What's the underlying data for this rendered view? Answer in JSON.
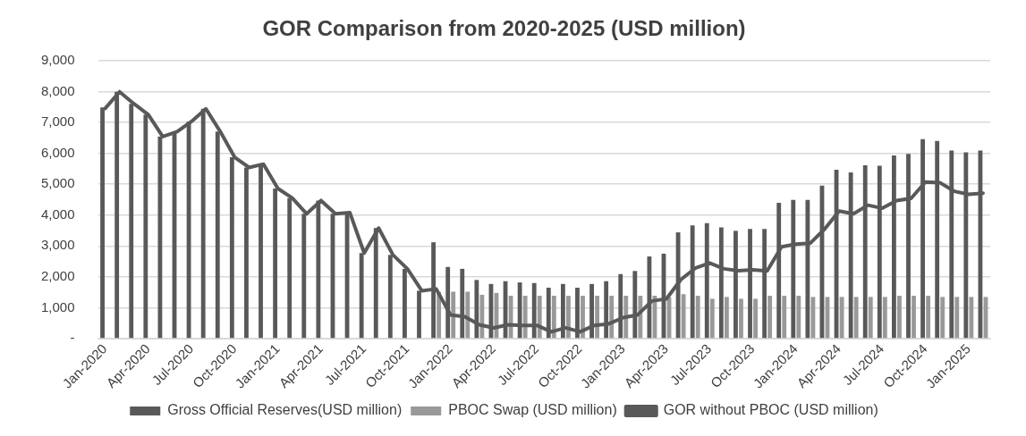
{
  "chart_data": {
    "type": "bar",
    "title": "GOR Comparison from 2020-2025 (USD million)",
    "categories": [
      "Jan-2020",
      null,
      null,
      "Apr-2020",
      null,
      null,
      "Jul-2020",
      null,
      null,
      "Oct-2020",
      null,
      null,
      "Jan-2021",
      null,
      null,
      "Apr-2021",
      null,
      null,
      "Jul-2021",
      null,
      null,
      "Oct-2021",
      null,
      null,
      "Jan-2022",
      null,
      null,
      "Apr-2022",
      null,
      null,
      "Jul-2022",
      null,
      null,
      "Oct-2022",
      null,
      null,
      "Jan-2023",
      null,
      null,
      "Apr-2023",
      null,
      null,
      "Jul-2023",
      null,
      null,
      "Oct-2023",
      null,
      null,
      "Jan-2024",
      null,
      null,
      "Apr-2024",
      null,
      null,
      "Jul-2024",
      null,
      null,
      "Oct-2024",
      null,
      null,
      "Jan-2025",
      null
    ],
    "series": [
      {
        "name": "Gross Official Reserves(USD million)",
        "color": "#595959",
        "values": [
          7480,
          7990,
          7600,
          7250,
          6540,
          6700,
          7030,
          7440,
          6700,
          5870,
          5540,
          5650,
          4860,
          4550,
          4040,
          4470,
          4040,
          4080,
          2770,
          3580,
          2710,
          2260,
          1550,
          3120,
          2320,
          2260,
          1900,
          1770,
          1860,
          1820,
          1800,
          1650,
          1770,
          1650,
          1770,
          1860,
          2090,
          2190,
          2660,
          2750,
          3440,
          3670,
          3740,
          3600,
          3490,
          3550,
          3550,
          4400,
          4490,
          4490,
          4950,
          5470,
          5380,
          5610,
          5600,
          5930,
          5980,
          6460,
          6400,
          6090,
          6030,
          6090
        ]
      },
      {
        "name": "PBOC Swap (USD million)",
        "color": "#999999",
        "values": [
          null,
          null,
          null,
          null,
          null,
          null,
          null,
          null,
          null,
          null,
          null,
          null,
          null,
          null,
          null,
          null,
          null,
          null,
          null,
          null,
          null,
          null,
          null,
          1510,
          1520,
          1520,
          1420,
          1480,
          1390,
          1390,
          1390,
          1390,
          1390,
          1390,
          1390,
          1390,
          1390,
          1390,
          1390,
          1340,
          1440,
          1390,
          1290,
          1350,
          1290,
          1290,
          1390,
          1390,
          1390,
          1350,
          1350,
          1350,
          1350,
          1350,
          1350,
          1390,
          1390,
          1390,
          1350,
          1350,
          1350,
          1350
        ]
      },
      {
        "name": "GOR without PBOC (USD million)",
        "type": "line",
        "color": "#595959",
        "values": [
          7450,
          7990,
          7600,
          7250,
          6540,
          6700,
          7030,
          7440,
          6700,
          5870,
          5540,
          5650,
          4860,
          4550,
          4040,
          4470,
          4040,
          4080,
          2770,
          3580,
          2710,
          2260,
          1550,
          1610,
          770,
          710,
          450,
          350,
          450,
          430,
          430,
          220,
          350,
          220,
          430,
          480,
          680,
          770,
          1220,
          1290,
          1910,
          2280,
          2450,
          2260,
          2200,
          2230,
          2190,
          2970,
          3060,
          3090,
          3550,
          4130,
          4040,
          4320,
          4220,
          4470,
          4540,
          5070,
          5050,
          4770,
          4670,
          4710
        ]
      }
    ],
    "ylim": [
      0,
      9000
    ],
    "yticks": [
      {
        "value": 0,
        "label": "-"
      },
      {
        "value": 1000,
        "label": "1,000"
      },
      {
        "value": 2000,
        "label": "2,000"
      },
      {
        "value": 3000,
        "label": "3,000"
      },
      {
        "value": 4000,
        "label": "4,000"
      },
      {
        "value": 5000,
        "label": "5,000"
      },
      {
        "value": 6000,
        "label": "6,000"
      },
      {
        "value": 7000,
        "label": "7,000"
      },
      {
        "value": 8000,
        "label": "8,000"
      },
      {
        "value": 9000,
        "label": "9,000"
      }
    ],
    "grid": "y",
    "legend": "bottom",
    "marker": "none",
    "line_style": "solid"
  }
}
